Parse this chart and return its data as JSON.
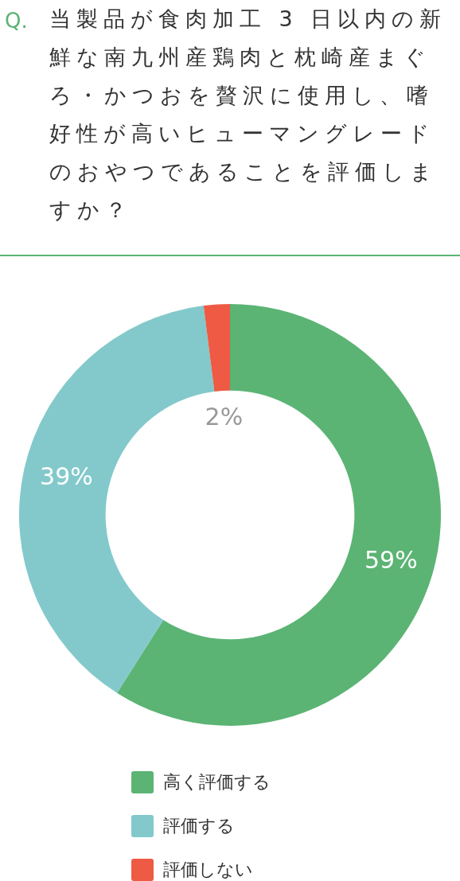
{
  "chart_data": {
    "type": "donut",
    "title": "当製品が食肉加工 3 日以内の新鮮な南九州産鶏肉と枕崎産まぐろ・かつおを贅沢に使用し、嗜好性が高いヒューマングレードのおやつであることを評価しますか？",
    "annotations": [
      "Q."
    ],
    "categories": [
      "高く評価する",
      "評価する",
      "評価しない"
    ],
    "values": [
      59,
      39,
      2
    ],
    "colors": [
      "#5bb474",
      "#83c9cb",
      "#ee5a44"
    ],
    "value_labels": [
      "59%",
      "39%",
      "2%"
    ],
    "legend": "bottom"
  }
}
